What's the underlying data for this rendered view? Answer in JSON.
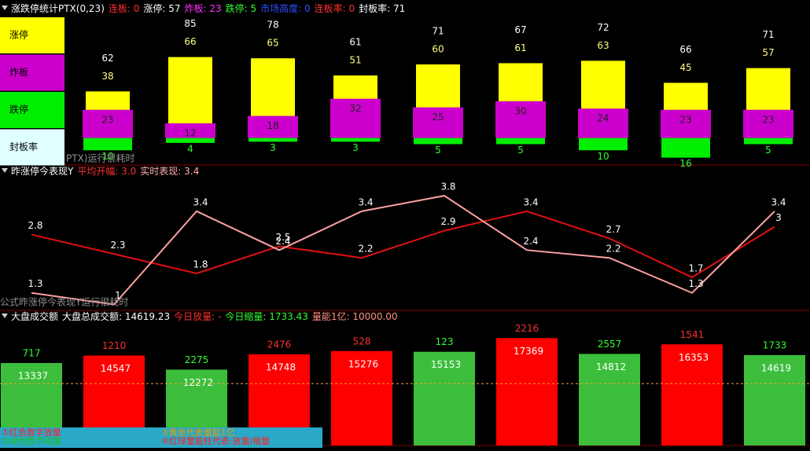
{
  "chart_data": [
    {
      "type": "bar",
      "title": "涨跌停统计PTX(0,23)",
      "header_items": [
        {
          "text": "连板: 0",
          "color": "#ff3030"
        },
        {
          "text": "涨停: 57",
          "color": "#ffffff"
        },
        {
          "text": "炸板: 23",
          "color": "#ff30ff"
        },
        {
          "text": "跌停: 5",
          "color": "#30ff30"
        },
        {
          "text": "市场高度: 0",
          "color": "#3050ff"
        },
        {
          "text": "连板率: 0",
          "color": "#ff3030"
        },
        {
          "text": "封板率: 71",
          "color": "#ffffff"
        }
      ],
      "series": [
        {
          "name": "涨停",
          "color": "#ffff00",
          "draw": "bar",
          "values": [
            38,
            66,
            65,
            51,
            60,
            61,
            63,
            45,
            57
          ]
        },
        {
          "name": "炸板",
          "color": "#cc00cc",
          "draw": "bar",
          "values": [
            23,
            12,
            18,
            32,
            25,
            30,
            24,
            23,
            23
          ]
        },
        {
          "name": "跌停",
          "color": "#00ee00",
          "draw": "bar-down",
          "values": [
            10,
            4,
            3,
            3,
            5,
            5,
            10,
            16,
            5
          ]
        },
        {
          "name": "封板率",
          "color": "#e0ffff",
          "draw": "label",
          "values": [
            62,
            85,
            78,
            61,
            71,
            67,
            72,
            66,
            71
          ]
        }
      ],
      "ylim": [
        -22,
        101
      ],
      "note": "PTX)运行很耗时"
    },
    {
      "type": "line",
      "title": "昨涨停今表现Y",
      "header_items": [
        {
          "text": "平均开幅: 3.0",
          "color": "#ff3030"
        },
        {
          "text": "实时表现: 3.4",
          "color": "#ffb0b0"
        }
      ],
      "series": [
        {
          "color": "#e01010",
          "values": [
            2.8,
            2.3,
            1.8,
            2.5,
            2.2,
            2.9,
            3.4,
            2.7,
            1.7,
            3.0
          ]
        },
        {
          "color": "#ffa0a0",
          "values": [
            1.3,
            1.0,
            3.4,
            2.4,
            3.4,
            3.8,
            2.4,
            2.2,
            1.3,
            3.4
          ]
        }
      ],
      "ylim": [
        0.85,
        4.55
      ],
      "note": "公式昨涨停今表现Y运行很耗时"
    },
    {
      "type": "volume",
      "title": "大盘成交额",
      "header_items": [
        {
          "text": "大盘总成交额: 14619.23",
          "color": "#ffffff"
        },
        {
          "text": "今日放量: -",
          "color": "#ff3030"
        },
        {
          "text": "今日缩量: 1733.43",
          "color": "#30ff30"
        },
        {
          "text": "量能1亿: 10000.00",
          "color": "#ff9080"
        }
      ],
      "values": [
        13337,
        14547,
        12272,
        14748,
        15276,
        15153,
        17369,
        14812,
        16353,
        14619
      ],
      "changes": [
        717,
        1210,
        2275,
        2476,
        528,
        123,
        2216,
        2557,
        1541,
        1733
      ],
      "colors": [
        "#3cbe3c",
        "#ff0000",
        "#3cbe3c",
        "#ff0000",
        "#ff0000",
        "#3cbe3c",
        "#ff0000",
        "#3cbe3c",
        "#ff0000",
        "#3cbe3c"
      ],
      "ref_line": {
        "value": 10000,
        "color": "#ffa030"
      },
      "ylim": [
        0,
        21600
      ],
      "notes": [
        {
          "text": "①红色数字放量",
          "color": "#ff2020"
        },
        {
          "text": "②绿色数字缩量",
          "color": "#20c020"
        },
        {
          "text": "③黄色代表量能1亿",
          "color": "#e0a000"
        },
        {
          "text": "④红绿量能柱代表:放量/缩量",
          "color": "#ff2020"
        }
      ]
    }
  ]
}
